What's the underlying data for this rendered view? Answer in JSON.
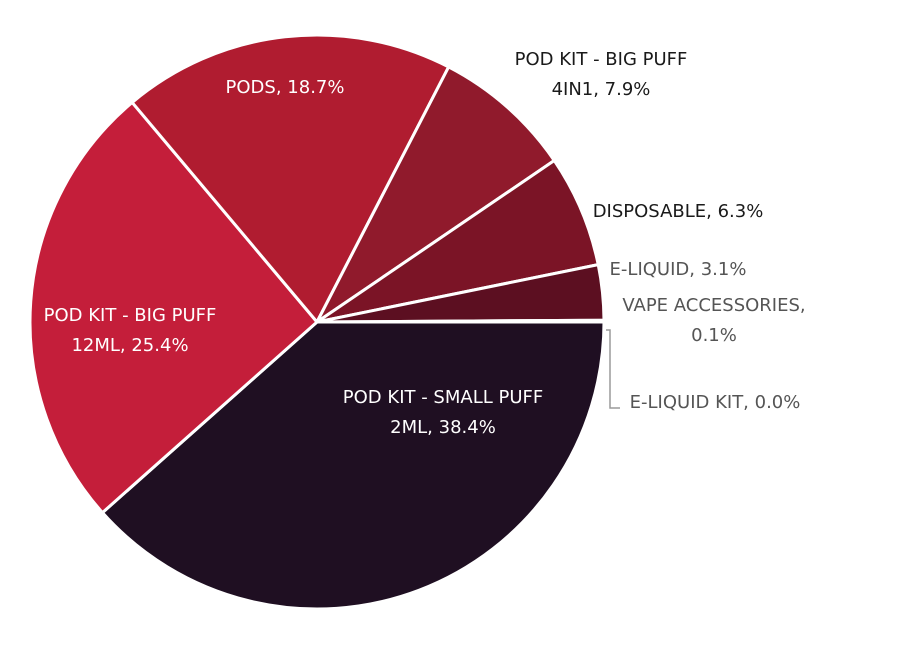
{
  "chart_data": {
    "type": "pie",
    "values": [
      38.4,
      25.4,
      18.7,
      7.9,
      6.3,
      3.1,
      0.1,
      0.0
    ],
    "value_labels": [
      [
        "POD KIT - SMALL PUFF",
        "2ML, 38.4%"
      ],
      [
        "POD KIT - BIG PUFF",
        "12ML, 25.4%"
      ],
      [
        "PODS, 18.7%"
      ],
      [
        "POD KIT - BIG PUFF",
        "4IN1, 7.9%"
      ],
      [
        "DISPOSABLE, 6.3%"
      ],
      [
        "E-LIQUID, 3.1%"
      ],
      [
        "VAPE ACCESSORIES,",
        "0.1%"
      ],
      [
        "E-LIQUID KIT, 0.0%"
      ]
    ],
    "colors": [
      "#1f0f22",
      "#c41e3a",
      "#b01c30",
      "#901a2c",
      "#7b1426",
      "#5c0f21",
      "#4a0a1d",
      "#333333"
    ]
  }
}
